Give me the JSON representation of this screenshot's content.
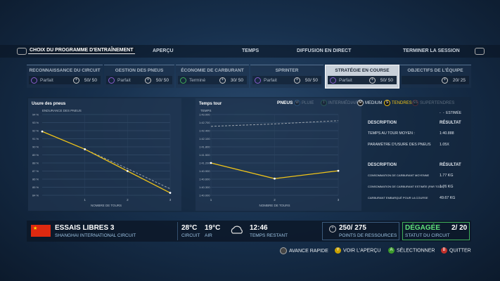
{
  "nav": {
    "items": [
      "CHOIX DU PROGRAMME D'ENTRAÎNEMENT",
      "APERÇU",
      "TEMPS",
      "DIFFUSION EN DIRECT",
      "TERMINER LA SESSION"
    ]
  },
  "programs": [
    {
      "name": "RECONNAISSANCE DU CIRCUIT",
      "status": "Parfait",
      "score": "50/ 50"
    },
    {
      "name": "GESTION DES PNEUS",
      "status": "Parfait",
      "score": "50/ 50"
    },
    {
      "name": "ÉCONOMIE DE CARBURANT",
      "status": "Terminé",
      "score": "30/ 50"
    },
    {
      "name": "SPRINTER",
      "status": "Parfait",
      "score": "50/ 50"
    },
    {
      "name": "STRATÉGIE EN COURSE",
      "status": "Parfait",
      "score": "50/ 50"
    },
    {
      "name": "OBJECTIFS DE L'ÉQUIPE",
      "score": "20/ 25"
    }
  ],
  "tyres": {
    "label": "PNEUS",
    "compounds": [
      {
        "icon": "W",
        "name": "PLUIE"
      },
      {
        "icon": "I",
        "name": "INTERMÉDIAIRE"
      },
      {
        "icon": "M",
        "name": "MEDIUM"
      },
      {
        "icon": "S",
        "name": "TENDRES"
      },
      {
        "icon": "SS",
        "name": "SUPERTENDRES"
      }
    ]
  },
  "estimate_label": "ESTIMÉE",
  "charts": [
    {
      "type": "line",
      "title": "Usure des pneus",
      "ylabel": "ENDURANCE DES PNEUS",
      "xlabel": "NOMBRE DE TOURS",
      "xlim": [
        0,
        3
      ],
      "xticks": [
        1,
        2,
        3
      ],
      "ylim": [
        84,
        94
      ],
      "yticks": [
        {
          "value": 94,
          "label": "94 %"
        },
        {
          "value": 93,
          "label": "93 %"
        },
        {
          "value": 92,
          "label": "92 %"
        },
        {
          "value": 91,
          "label": "91 %"
        },
        {
          "value": 90,
          "label": "90 %"
        },
        {
          "value": 89,
          "label": "89 %"
        },
        {
          "value": 88,
          "label": "88 %"
        },
        {
          "value": 87,
          "label": "87 %"
        },
        {
          "value": 86,
          "label": "86 %"
        },
        {
          "value": 85,
          "label": "85 %"
        },
        {
          "value": 84,
          "label": "84 %"
        }
      ],
      "series": [
        {
          "color": "#f0c419",
          "x": [
            0,
            1,
            2,
            3
          ],
          "values": [
            91.9,
            89.7,
            87.0,
            84.3
          ]
        }
      ],
      "estimate": {
        "color": "#9aa3ad",
        "x": [
          1,
          2,
          3
        ],
        "values": [
          89.7,
          87.3,
          84.8
        ]
      }
    },
    {
      "type": "line",
      "title": "Temps tour",
      "ylabel": "TEMPS",
      "xlabel": "NOMBRE DE TOURS",
      "xlim": [
        1,
        3
      ],
      "xticks": [
        1,
        2,
        3
      ],
      "ylim": [
        100,
        103
      ],
      "yticks": [
        {
          "value": 103,
          "label": "1:43.000"
        },
        {
          "value": 102.7,
          "label": "1:42.700"
        },
        {
          "value": 102.4,
          "label": "1:42.400"
        },
        {
          "value": 102.1,
          "label": "1:42.100"
        },
        {
          "value": 101.8,
          "label": "1:41.800"
        },
        {
          "value": 101.5,
          "label": "1:41.500"
        },
        {
          "value": 101.2,
          "label": "1:41.200"
        },
        {
          "value": 100.9,
          "label": "1:40.900"
        },
        {
          "value": 100.6,
          "label": "1:40.600"
        },
        {
          "value": 100.3,
          "label": "1:40.300"
        },
        {
          "value": 100,
          "label": "1:40.000"
        }
      ],
      "series": [
        {
          "color": "#f0c419",
          "x": [
            1,
            2,
            3
          ],
          "values": [
            101.2,
            100.62,
            100.91
          ]
        }
      ],
      "estimate": {
        "color": "#9aa3ad",
        "x": [
          1,
          2,
          3
        ],
        "values": [
          102.56,
          102.65,
          102.77
        ]
      }
    }
  ],
  "results": [
    {
      "header": [
        "DESCRIPTION",
        "RÉSULTAT"
      ],
      "rows": [
        [
          "TEMPS AU TOUR MOYEN :",
          "1:40.888"
        ],
        [
          "PARAMÈTRE D'USURE DES PNEUS",
          "1.05X"
        ]
      ]
    },
    {
      "header": [
        "DESCRIPTION",
        "RÉSULTAT"
      ],
      "rows": [
        [
          "CONSOMMATION DE CARBURANT MOYENNE",
          "1.77 KG"
        ],
        [
          "CONSOMMATION DE CARBURANT ESTIMÉE (PAR TOUR)",
          "1.76 KG"
        ],
        [
          "CARBURANT EMBARQUÉ POUR LA COURSE",
          "49.67 KG"
        ]
      ]
    }
  ],
  "session": {
    "name": "ESSAIS LIBRES 3",
    "circuit": "SHANGHAI INTERNATIONAL CIRCUIT",
    "track_temp": "28°C",
    "track_label": "CIRCUIT",
    "air_temp": "19°C",
    "air_label": "AIR",
    "time": "12:46",
    "time_label": "TEMPS RESTANT",
    "points": "250/ 275",
    "points_label": "POINTS DE RESSOURCES",
    "status": "DÉGAGÉE",
    "status_count": "2/ 20",
    "status_label": "STATUT DU CIRCUIT"
  },
  "controls": [
    {
      "label": "AVANCE RAPIDE"
    },
    {
      "icon": "Y",
      "label": "VOIR L'APERÇU"
    },
    {
      "icon": "A",
      "label": "SÉLECTIONNER"
    },
    {
      "icon": "B",
      "label": "QUITTER"
    }
  ]
}
